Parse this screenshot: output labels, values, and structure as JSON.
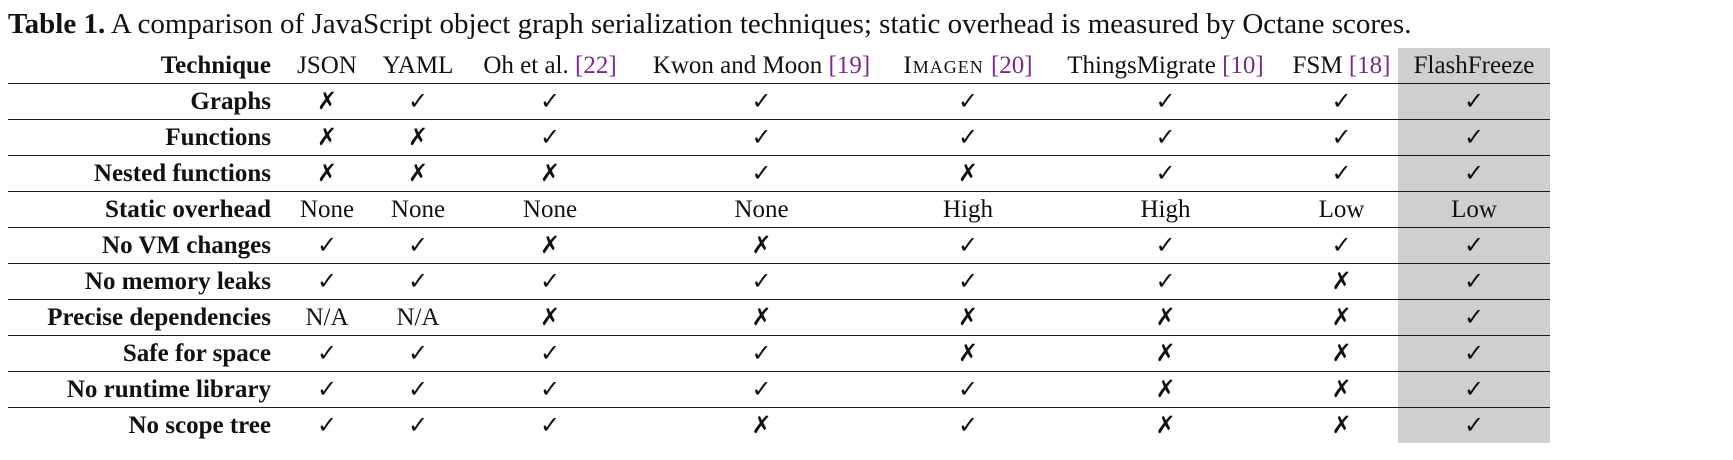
{
  "caption": {
    "label": "Table 1.",
    "text": "A comparison of JavaScript object graph serialization techniques; static overhead is measured by Octane scores."
  },
  "table": {
    "corner_label": "Technique",
    "columns": [
      {
        "name": "JSON",
        "cite": ""
      },
      {
        "name": "YAML",
        "cite": ""
      },
      {
        "name": "Oh et al. ",
        "cite": "22"
      },
      {
        "name": "Kwon and Moon ",
        "cite": "19"
      },
      {
        "name": "Imagen ",
        "cite": "20"
      },
      {
        "name": "ThingsMigrate ",
        "cite": "10"
      },
      {
        "name": "FSM ",
        "cite": "18"
      },
      {
        "name": "FlashFreeze",
        "cite": ""
      }
    ],
    "highlight_column": "FlashFreeze",
    "highlight_color": "#cfcfcf",
    "citation_color": "#7a2a8a",
    "rows": [
      {
        "label": "Graphs",
        "cells": [
          "✗",
          "✓",
          "✓",
          "✓",
          "✓",
          "✓",
          "✓",
          "✓"
        ]
      },
      {
        "label": "Functions",
        "cells": [
          "✗",
          "✗",
          "✓",
          "✓",
          "✓",
          "✓",
          "✓",
          "✓"
        ]
      },
      {
        "label": "Nested functions",
        "cells": [
          "✗",
          "✗",
          "✗",
          "✓",
          "✗",
          "✓",
          "✓",
          "✓"
        ]
      },
      {
        "label": "Static overhead",
        "cells": [
          "None",
          "None",
          "None",
          "None",
          "High",
          "High",
          "Low",
          "Low"
        ]
      },
      {
        "label": "No VM changes",
        "cells": [
          "✓",
          "✓",
          "✗",
          "✗",
          "✓",
          "✓",
          "✓",
          "✓"
        ]
      },
      {
        "label": "No memory leaks",
        "cells": [
          "✓",
          "✓",
          "✓",
          "✓",
          "✓",
          "✓",
          "✗",
          "✓"
        ]
      },
      {
        "label": "Precise dependencies",
        "cells": [
          "N/A",
          "N/A",
          "✗",
          "✗",
          "✗",
          "✗",
          "✗",
          "✓"
        ]
      },
      {
        "label": "Safe for space",
        "cells": [
          "✓",
          "✓",
          "✓",
          "✓",
          "✗",
          "✗",
          "✗",
          "✓"
        ]
      },
      {
        "label": "No runtime library",
        "cells": [
          "✓",
          "✓",
          "✓",
          "✓",
          "✓",
          "✗",
          "✗",
          "✓"
        ]
      },
      {
        "label": "No scope tree",
        "cells": [
          "✓",
          "✓",
          "✓",
          "✗",
          "✓",
          "✗",
          "✗",
          "✓"
        ]
      }
    ]
  }
}
